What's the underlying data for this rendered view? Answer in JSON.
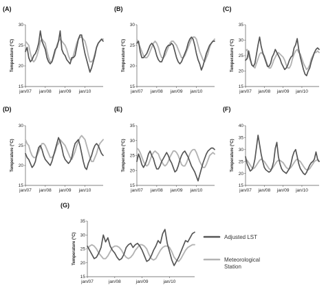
{
  "colors": {
    "adjusted": "#555555",
    "station": "#b3b3b3",
    "axis": "#555555",
    "background": "#ffffff"
  },
  "legend": {
    "placement": "right of panel G",
    "entries": [
      {
        "key": "adjusted",
        "lines": [
          "Adjusted LST"
        ]
      },
      {
        "key": "station",
        "lines": [
          "Meteorological",
          "Station"
        ]
      }
    ]
  },
  "chart_data": [
    {
      "type": "line",
      "panel_label": "(A)",
      "ylabel": "Temperature (°C)",
      "ylim": [
        15,
        30
      ],
      "yticks": [
        15,
        20,
        25,
        30
      ],
      "xlim": [
        0,
        47
      ],
      "x_tick_labels": [
        "jan/07",
        "jan/08",
        "jan/09",
        "jan/10"
      ],
      "x_tick_positions": [
        0,
        12,
        24,
        36
      ],
      "grid": false,
      "series": [
        {
          "key": "adjusted",
          "name": "Adjusted LST",
          "values": [
            23.5,
            24.5,
            22.0,
            21.0,
            21.5,
            22.5,
            23.0,
            24.0,
            25.5,
            28.5,
            26.0,
            25.0,
            24.0,
            22.0,
            21.0,
            20.5,
            21.0,
            22.5,
            24.0,
            24.5,
            26.0,
            28.5,
            24.0,
            23.0,
            22.5,
            21.5,
            21.0,
            20.5,
            22.0,
            22.0,
            22.5,
            24.5,
            26.5,
            27.5,
            27.5,
            25.0,
            23.0,
            21.5,
            20.0,
            18.5,
            19.5,
            21.0,
            22.5,
            24.5,
            25.5,
            26.0,
            26.5,
            26.0
          ]
        },
        {
          "key": "station",
          "name": "Meteorological Station",
          "values": [
            26.0,
            25.5,
            25.0,
            23.0,
            21.5,
            21.0,
            21.5,
            22.5,
            24.0,
            26.0,
            26.5,
            26.0,
            25.5,
            23.5,
            22.0,
            21.0,
            21.0,
            22.0,
            23.5,
            25.0,
            26.0,
            26.5,
            26.0,
            25.5,
            25.0,
            24.0,
            22.5,
            21.5,
            21.5,
            22.5,
            24.0,
            25.5,
            26.5,
            27.0,
            27.0,
            26.5,
            26.0,
            24.5,
            22.5,
            21.0,
            21.0,
            21.5,
            23.0,
            24.5,
            25.5,
            26.0,
            26.5,
            26.5
          ]
        }
      ]
    },
    {
      "type": "line",
      "panel_label": "(B)",
      "ylabel": "Temperature (°C)",
      "ylim": [
        15,
        30
      ],
      "yticks": [
        15,
        20,
        25,
        30
      ],
      "xlim": [
        0,
        47
      ],
      "x_tick_labels": [
        "jan/07",
        "jan/08",
        "jan/09",
        "jan/10"
      ],
      "x_tick_positions": [
        0,
        12,
        24,
        36
      ],
      "grid": false,
      "series": [
        {
          "key": "adjusted",
          "name": "Adjusted LST",
          "values": [
            25.5,
            26.0,
            23.5,
            22.0,
            22.0,
            22.5,
            23.0,
            24.0,
            25.0,
            25.5,
            25.0,
            24.0,
            22.5,
            21.5,
            21.0,
            21.0,
            22.0,
            23.5,
            24.5,
            25.0,
            25.0,
            25.5,
            25.0,
            23.5,
            22.0,
            21.0,
            20.5,
            21.0,
            22.0,
            23.0,
            24.0,
            25.5,
            26.5,
            27.0,
            26.5,
            25.0,
            23.0,
            21.5,
            20.5,
            19.0,
            20.0,
            21.5,
            23.0,
            24.0,
            25.0,
            25.5,
            26.0,
            26.0
          ]
        },
        {
          "key": "station",
          "name": "Meteorological Station",
          "values": [
            26.5,
            25.5,
            24.5,
            23.5,
            22.5,
            22.0,
            22.0,
            22.5,
            23.5,
            24.5,
            25.5,
            26.0,
            25.5,
            24.5,
            23.0,
            22.0,
            22.0,
            22.5,
            23.5,
            24.5,
            25.5,
            26.0,
            26.0,
            25.5,
            25.0,
            24.0,
            23.0,
            22.0,
            22.0,
            22.5,
            23.5,
            24.5,
            25.5,
            26.5,
            27.0,
            27.0,
            26.5,
            25.0,
            23.5,
            22.5,
            21.5,
            21.0,
            22.0,
            23.0,
            24.5,
            25.5,
            26.0,
            26.5
          ]
        }
      ]
    },
    {
      "type": "line",
      "panel_label": "(C)",
      "ylabel": "Temperature (°C)",
      "ylim": [
        15,
        35
      ],
      "yticks": [
        15,
        20,
        25,
        30,
        35
      ],
      "xlim": [
        0,
        47
      ],
      "x_tick_labels": [
        "jan/07",
        "jan/08",
        "jan/09",
        "jan/10"
      ],
      "x_tick_positions": [
        0,
        12,
        24,
        36
      ],
      "grid": false,
      "series": [
        {
          "key": "adjusted",
          "name": "Adjusted LST",
          "values": [
            23.5,
            24.0,
            26.5,
            24.0,
            22.0,
            21.5,
            22.5,
            25.5,
            28.5,
            31.0,
            28.0,
            26.0,
            24.5,
            23.0,
            21.5,
            21.5,
            22.5,
            24.5,
            25.5,
            27.0,
            26.0,
            25.0,
            24.0,
            22.5,
            21.5,
            20.5,
            21.0,
            22.0,
            23.5,
            24.5,
            25.0,
            27.5,
            28.5,
            30.5,
            27.0,
            24.5,
            22.5,
            20.5,
            19.0,
            18.5,
            20.0,
            21.0,
            23.0,
            24.5,
            26.0,
            27.0,
            27.5,
            27.0
          ]
        },
        {
          "key": "station",
          "name": "Meteorological Station",
          "values": [
            26.5,
            27.0,
            25.0,
            23.5,
            22.0,
            21.5,
            21.0,
            22.5,
            24.0,
            25.5,
            26.0,
            25.5,
            25.0,
            23.5,
            22.0,
            21.0,
            21.0,
            22.0,
            23.5,
            24.5,
            25.5,
            26.0,
            25.5,
            25.0,
            24.5,
            23.5,
            22.0,
            21.0,
            21.0,
            22.0,
            24.0,
            25.5,
            26.5,
            27.0,
            26.0,
            25.5,
            24.0,
            22.5,
            21.5,
            20.5,
            21.0,
            22.0,
            24.0,
            25.0,
            26.0,
            26.0,
            26.5,
            26.0
          ]
        }
      ]
    },
    {
      "type": "line",
      "panel_label": "(D)",
      "ylabel": "Temperature (°C)",
      "ylim": [
        15,
        30
      ],
      "yticks": [
        15,
        20,
        25,
        30
      ],
      "xlim": [
        0,
        47
      ],
      "x_tick_labels": [
        "jan/07",
        "jan/08",
        "jan/09",
        "jan/10"
      ],
      "x_tick_positions": [
        0,
        12,
        24,
        36
      ],
      "grid": false,
      "series": [
        {
          "key": "adjusted",
          "name": "Adjusted LST",
          "values": [
            23.0,
            22.0,
            21.5,
            20.5,
            19.5,
            20.0,
            21.0,
            23.0,
            24.5,
            25.0,
            24.0,
            22.5,
            21.5,
            21.0,
            20.5,
            20.0,
            21.0,
            22.5,
            24.0,
            25.5,
            27.0,
            26.0,
            24.5,
            22.5,
            21.5,
            21.0,
            20.5,
            21.0,
            22.0,
            24.0,
            25.5,
            26.0,
            26.5,
            25.0,
            23.0,
            21.0,
            19.5,
            19.0,
            20.5,
            21.5,
            22.5,
            24.0,
            25.0,
            25.5,
            25.0,
            24.0,
            23.0,
            22.5
          ]
        },
        {
          "key": "station",
          "name": "Meteorological Station",
          "values": [
            26.5,
            25.5,
            25.0,
            23.5,
            22.5,
            22.0,
            22.0,
            22.5,
            23.5,
            24.5,
            25.5,
            25.5,
            25.0,
            24.0,
            23.0,
            22.0,
            22.0,
            22.5,
            23.5,
            25.0,
            25.5,
            26.5,
            26.0,
            25.5,
            25.0,
            24.0,
            23.0,
            22.0,
            21.5,
            22.5,
            23.5,
            25.0,
            26.0,
            27.0,
            27.5,
            27.0,
            26.5,
            25.0,
            23.5,
            22.0,
            21.0,
            21.0,
            22.0,
            23.0,
            24.5,
            25.5,
            26.0,
            26.5
          ]
        }
      ]
    },
    {
      "type": "line",
      "panel_label": "(E)",
      "ylabel": "Temperature (°C)",
      "ylim": [
        15,
        35
      ],
      "yticks": [
        15,
        20,
        25,
        30,
        35
      ],
      "xlim": [
        0,
        47
      ],
      "x_tick_labels": [
        "jan/07",
        "jan/08",
        "jan/09",
        "jan/10"
      ],
      "x_tick_positions": [
        0,
        12,
        24,
        36
      ],
      "grid": false,
      "series": [
        {
          "key": "adjusted",
          "name": "Adjusted LST",
          "values": [
            23.0,
            25.5,
            24.0,
            22.0,
            21.0,
            22.0,
            23.5,
            25.5,
            26.5,
            25.0,
            24.0,
            22.0,
            20.5,
            20.5,
            21.5,
            23.0,
            24.0,
            25.0,
            26.0,
            25.0,
            23.5,
            22.5,
            21.0,
            19.5,
            20.0,
            21.5,
            23.5,
            25.0,
            26.0,
            26.5,
            25.5,
            24.5,
            23.0,
            21.5,
            20.5,
            19.5,
            18.0,
            16.5,
            18.5,
            20.5,
            22.5,
            24.0,
            25.5,
            26.5,
            27.0,
            27.5,
            27.5,
            27.0
          ]
        },
        {
          "key": "station",
          "name": "Meteorological Station",
          "values": [
            27.5,
            27.0,
            26.0,
            24.5,
            23.0,
            22.0,
            21.5,
            22.0,
            23.5,
            25.0,
            26.0,
            26.5,
            26.0,
            25.5,
            24.0,
            23.0,
            22.0,
            21.5,
            22.0,
            23.0,
            24.5,
            25.5,
            26.5,
            26.5,
            26.0,
            25.0,
            23.5,
            22.0,
            21.5,
            21.5,
            22.5,
            24.0,
            25.5,
            26.5,
            27.0,
            27.0,
            26.0,
            24.5,
            23.0,
            22.0,
            21.0,
            21.0,
            22.0,
            23.5,
            25.0,
            25.5,
            26.0,
            25.5
          ]
        }
      ]
    },
    {
      "type": "line",
      "panel_label": "(F)",
      "ylabel": "Temperature (°C)",
      "ylim": [
        15,
        40
      ],
      "yticks": [
        15,
        20,
        25,
        30,
        35,
        40
      ],
      "xlim": [
        0,
        47
      ],
      "x_tick_labels": [
        "jan/07",
        "jan/08",
        "jan/09",
        "jan/10"
      ],
      "x_tick_positions": [
        0,
        12,
        24,
        36
      ],
      "grid": false,
      "series": [
        {
          "key": "adjusted",
          "name": "Adjusted LST",
          "values": [
            27.0,
            24.0,
            22.5,
            21.0,
            21.5,
            23.0,
            26.0,
            31.0,
            36.0,
            32.0,
            28.0,
            25.0,
            22.5,
            21.5,
            21.0,
            20.5,
            21.0,
            22.5,
            25.0,
            30.5,
            33.0,
            27.0,
            24.0,
            22.0,
            21.0,
            20.5,
            20.0,
            21.0,
            22.0,
            24.0,
            27.0,
            29.0,
            30.0,
            27.0,
            24.0,
            22.0,
            21.0,
            20.0,
            19.5,
            20.5,
            22.0,
            23.5,
            24.5,
            25.0,
            26.0,
            29.0,
            26.0,
            25.0
          ]
        },
        {
          "key": "station",
          "name": "Meteorological Station",
          "values": [
            26.0,
            25.5,
            24.5,
            23.5,
            22.5,
            22.0,
            22.5,
            23.5,
            24.5,
            25.5,
            26.0,
            25.5,
            25.0,
            24.0,
            23.0,
            22.0,
            21.5,
            22.0,
            23.0,
            24.0,
            25.0,
            25.5,
            25.5,
            25.0,
            24.5,
            23.5,
            22.5,
            22.0,
            22.0,
            22.5,
            23.5,
            24.5,
            25.5,
            26.0,
            25.5,
            25.0,
            24.0,
            23.0,
            22.0,
            21.5,
            21.5,
            22.0,
            23.0,
            24.0,
            25.0,
            25.5,
            25.5,
            25.0
          ]
        }
      ]
    },
    {
      "type": "line",
      "panel_label": "(G)",
      "ylabel": "Temperature (°C)",
      "ylim": [
        15,
        35
      ],
      "yticks": [
        15,
        20,
        25,
        30,
        35
      ],
      "xlim": [
        0,
        47
      ],
      "x_tick_labels": [
        "jan/07",
        "jan/08",
        "jan/09",
        "jan/10"
      ],
      "x_tick_positions": [
        0,
        12,
        24,
        36
      ],
      "grid": false,
      "series": [
        {
          "key": "adjusted",
          "name": "Adjusted LST",
          "values": [
            26.0,
            24.5,
            23.0,
            21.5,
            22.0,
            23.5,
            25.5,
            30.0,
            27.5,
            29.0,
            26.0,
            24.5,
            23.5,
            22.0,
            21.0,
            21.5,
            23.0,
            25.5,
            26.5,
            27.0,
            25.5,
            26.5,
            27.0,
            26.0,
            24.5,
            22.5,
            20.5,
            21.0,
            22.5,
            24.5,
            26.0,
            28.0,
            27.0,
            30.5,
            32.0,
            27.0,
            24.0,
            21.0,
            19.0,
            20.5,
            22.0,
            24.0,
            26.0,
            28.0,
            27.5,
            29.0,
            30.5,
            31.0
          ]
        },
        {
          "key": "station",
          "name": "Meteorological Station",
          "values": [
            25.0,
            26.0,
            26.5,
            26.0,
            25.0,
            23.5,
            22.5,
            21.5,
            21.5,
            22.5,
            24.0,
            25.5,
            26.0,
            26.0,
            25.5,
            24.5,
            23.0,
            22.0,
            21.5,
            22.0,
            23.0,
            24.5,
            25.5,
            26.5,
            26.5,
            26.0,
            25.0,
            23.0,
            21.5,
            21.0,
            21.5,
            23.0,
            24.5,
            25.5,
            26.0,
            26.0,
            25.5,
            24.0,
            22.0,
            21.0,
            20.5,
            21.5,
            23.0,
            24.5,
            25.5,
            26.0,
            26.5,
            26.5
          ]
        }
      ]
    }
  ]
}
